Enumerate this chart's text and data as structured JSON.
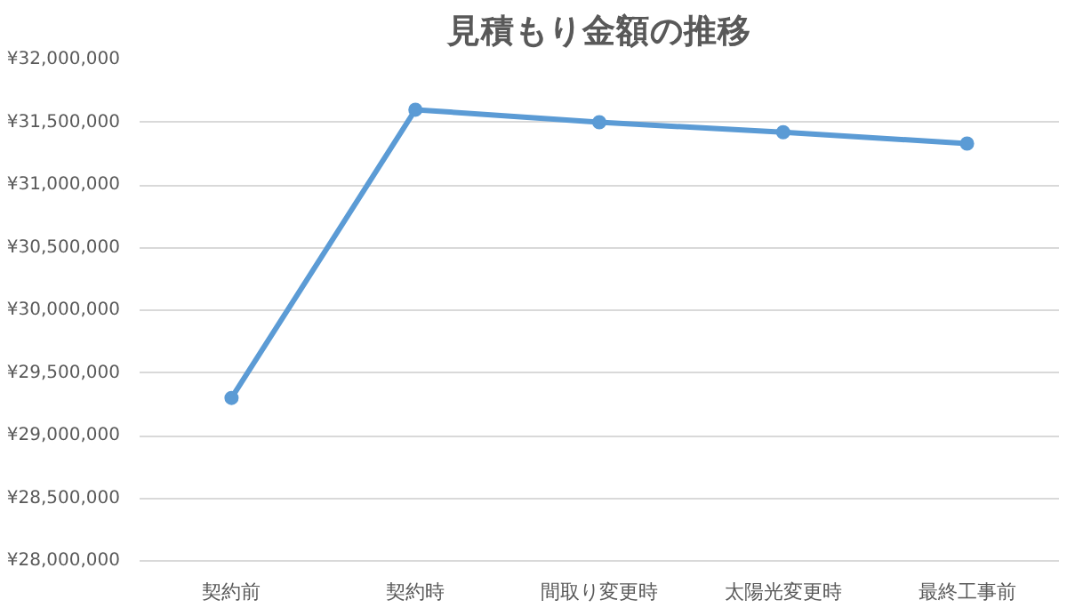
{
  "chart_data": {
    "type": "line",
    "title": "見積もり金額の推移",
    "categories": [
      "契約前",
      "契約時",
      "間取り変更時",
      "太陽光変更時",
      "最終工事前"
    ],
    "series": [
      {
        "color": "#5b9bd5",
        "values": [
          29300000,
          31600000,
          31500000,
          31420000,
          31330000
        ]
      }
    ],
    "ylim": [
      28000000,
      32000000
    ],
    "yticks": [
      {
        "value": 28000000,
        "label": "¥28,000,000"
      },
      {
        "value": 28500000,
        "label": "¥28,500,000"
      },
      {
        "value": 29000000,
        "label": "¥29,000,000"
      },
      {
        "value": 29500000,
        "label": "¥29,500,000"
      },
      {
        "value": 30000000,
        "label": "¥30,000,000"
      },
      {
        "value": 30500000,
        "label": "¥30,500,000"
      },
      {
        "value": 31000000,
        "label": "¥31,000,000"
      },
      {
        "value": 31500000,
        "label": "¥31,500,000"
      },
      {
        "value": 32000000,
        "label": "¥32,000,000"
      }
    ],
    "grid": "y",
    "marker": "circle",
    "line_style": "solid"
  }
}
